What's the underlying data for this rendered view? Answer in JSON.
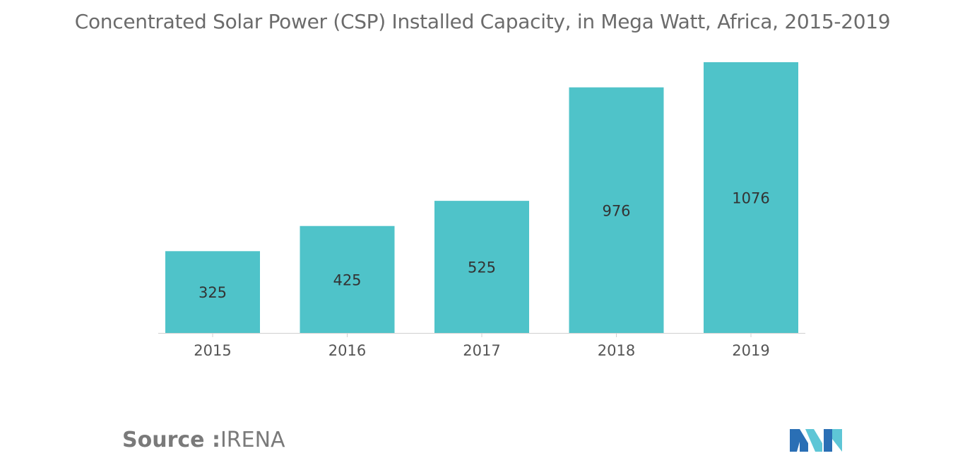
{
  "chart_data": {
    "type": "bar",
    "title": "Concentrated Solar Power (CSP) Installed Capacity, in Mega Watt, Africa, 2015-2019",
    "categories": [
      "2015",
      "2016",
      "2017",
      "2018",
      "2019"
    ],
    "values": [
      325,
      425,
      525,
      976,
      1076
    ],
    "data_labels": [
      "325",
      "425",
      "525",
      "976",
      "1076"
    ],
    "xlabel": "",
    "ylabel": "",
    "ylim": [
      0,
      1076
    ],
    "grid": false,
    "bar_color": "#4fc3c9"
  },
  "source": {
    "label": "Source :",
    "value": "IRENA"
  },
  "logo": {
    "icon": "mordor-intelligence-logo",
    "colors": [
      "#2a6fb5",
      "#5ec6d6"
    ]
  }
}
